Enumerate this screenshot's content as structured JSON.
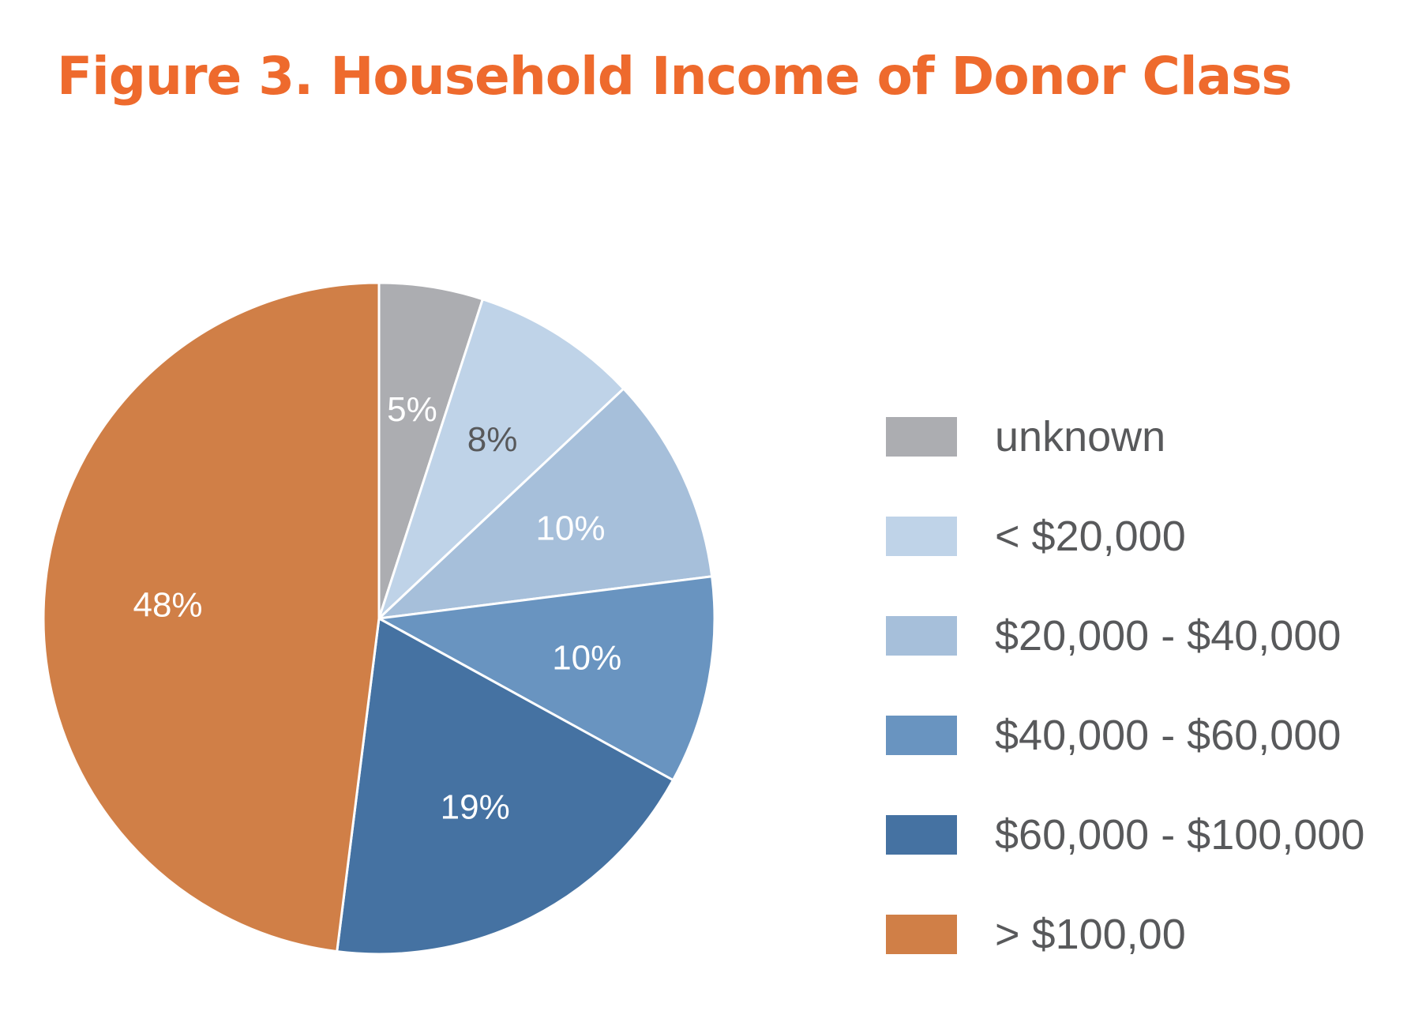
{
  "chart_data": {
    "type": "pie",
    "title": "Figure 3. Household Income of Donor Class",
    "legend_position": "right",
    "slices": [
      {
        "label": "unknown",
        "value": 5,
        "value_label": "5%",
        "color": "#acadb1",
        "label_color": "#ffffff"
      },
      {
        "label": "< $20,000",
        "value": 8,
        "value_label": "8%",
        "color": "#bfd3e8",
        "label_color": "#58595b"
      },
      {
        "label": "$20,000 - $40,000",
        "value": 10,
        "value_label": "10%",
        "color": "#a6bfda",
        "label_color": "#ffffff"
      },
      {
        "label": "$40,000 - $60,000",
        "value": 10,
        "value_label": "10%",
        "color": "#6994c0",
        "label_color": "#ffffff"
      },
      {
        "label": "$60,000 - $100,000",
        "value": 19,
        "value_label": "19%",
        "color": "#4572a2",
        "label_color": "#ffffff"
      },
      {
        "label": "> $100,00",
        "value": 48,
        "value_label": "48%",
        "color": "#d07f47",
        "label_color": "#ffffff"
      }
    ]
  }
}
